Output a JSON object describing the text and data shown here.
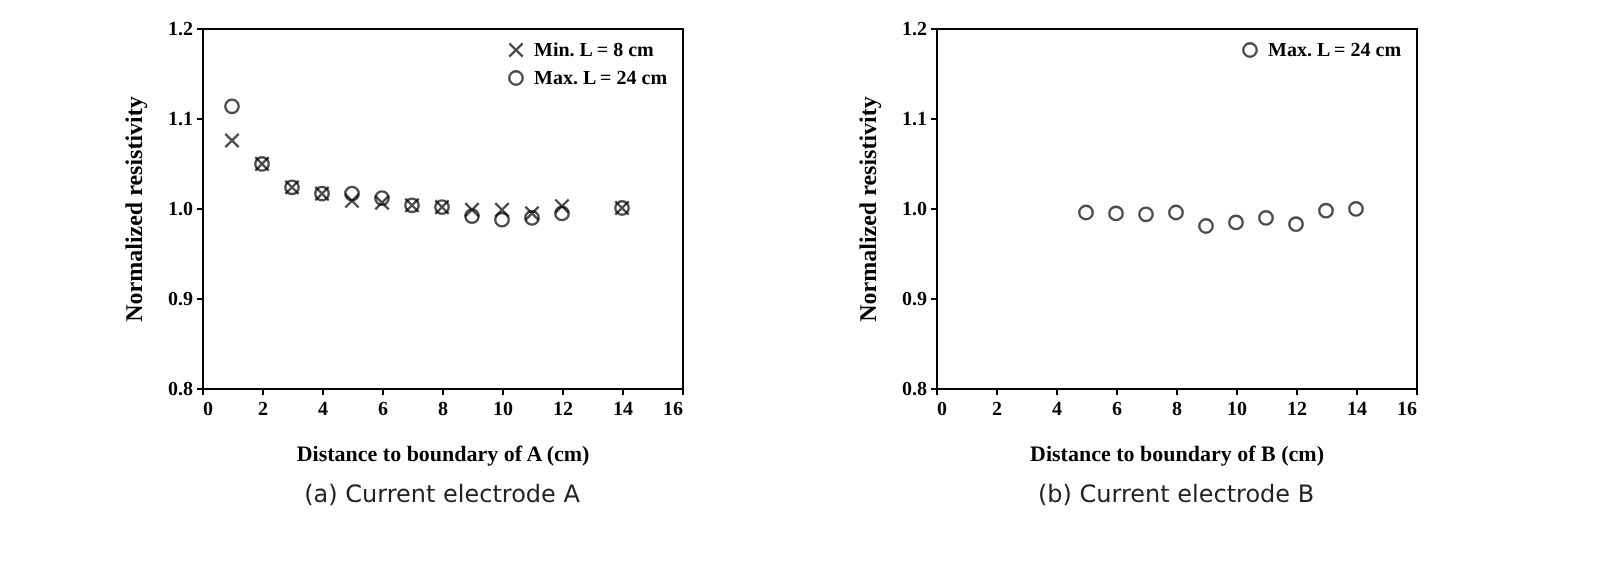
{
  "chart_data": [
    {
      "type": "scatter",
      "xlabel": "Distance to boundary of A (cm)",
      "ylabel": "Normalized resistivity",
      "annotations": [
        "(a) Current electrode A"
      ],
      "xlim": [
        0,
        16
      ],
      "xticks": [
        0,
        2,
        4,
        6,
        8,
        10,
        12,
        14,
        16
      ],
      "ylim": [
        0.8,
        1.2
      ],
      "yticks": [
        0.8,
        0.9,
        {
          "value": 1,
          "label": "1.0"
        },
        1.1,
        1.2
      ],
      "grid": false,
      "legend": "top right",
      "series": [
        {
          "name": "Min. L = 8 cm",
          "color": "#000000",
          "marker": "cross",
          "x": [
            1,
            2,
            3,
            4,
            5,
            6,
            7,
            8,
            9,
            10,
            11,
            12,
            14
          ],
          "values": [
            1.075,
            1.049,
            1.023,
            1.016,
            1.008,
            1.006,
            1.003,
            1.001,
            0.998,
            0.998,
            0.994,
            1.002,
            1.0
          ]
        },
        {
          "name": "Max. L = 24 cm",
          "color": "#000000",
          "marker": "circle",
          "x": [
            1,
            2,
            3,
            4,
            5,
            6,
            7,
            8,
            9,
            10,
            11,
            12,
            14
          ],
          "values": [
            1.113,
            1.049,
            1.023,
            1.016,
            1.016,
            1.011,
            1.003,
            1.001,
            0.991,
            0.987,
            0.989,
            0.994,
            1.0
          ]
        }
      ]
    },
    {
      "type": "scatter",
      "xlabel": "Distance to boundary of B (cm)",
      "ylabel": "Normalized resistivity",
      "annotations": [
        "(b) Current electrode B"
      ],
      "xlim": [
        0,
        16
      ],
      "xticks": [
        0,
        2,
        4,
        6,
        8,
        10,
        12,
        14,
        16
      ],
      "ylim": [
        0.8,
        1.2
      ],
      "yticks": [
        0.8,
        0.9,
        {
          "value": 1,
          "label": "1.0"
        },
        1.1,
        1.2
      ],
      "grid": false,
      "legend": "top right",
      "series": [
        {
          "name": "Max. L = 24 cm",
          "color": "#000000",
          "marker": "circle",
          "x": [
            5,
            6,
            7,
            8,
            9,
            10,
            11,
            12,
            13,
            14
          ],
          "values": [
            0.995,
            0.994,
            0.993,
            0.995,
            0.98,
            0.984,
            0.989,
            0.982,
            0.997,
            0.999
          ]
        }
      ]
    }
  ]
}
